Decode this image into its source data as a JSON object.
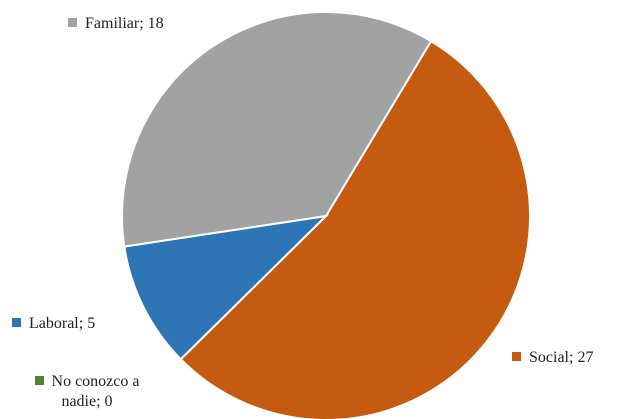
{
  "chart_data": {
    "type": "pie",
    "categories": [
      "Social",
      "Laboral",
      "No conozco a nadie",
      "Familiar"
    ],
    "values": [
      27,
      5,
      0,
      18
    ],
    "colors": [
      "#c55a11",
      "#2e75b6",
      "#548235",
      "#a0a2a4"
    ],
    "label_separator": "; "
  }
}
